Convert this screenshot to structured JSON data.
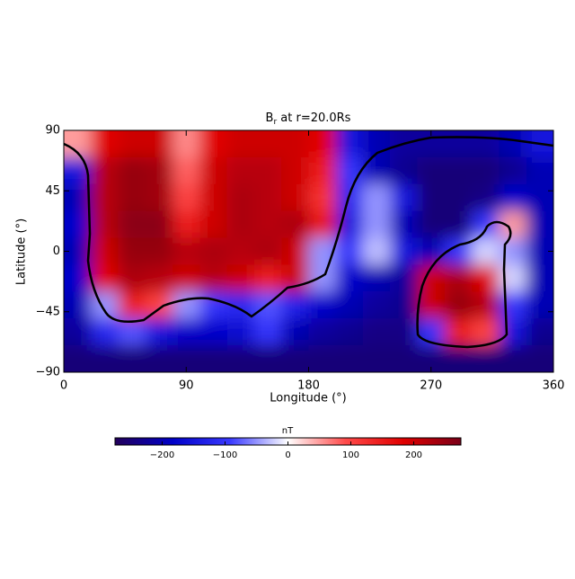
{
  "chart_data": {
    "type": "heatmap",
    "title_symbol": "B",
    "title_subscript": "r",
    "title_rest": " at r=20.0Rs",
    "xlabel": "Longitude (°)",
    "ylabel": "Latitude (°)",
    "xlim": [
      0,
      360
    ],
    "ylim": [
      -90,
      90
    ],
    "xticks": [
      0,
      90,
      180,
      270,
      360
    ],
    "yticks": [
      {
        "value": -90,
        "label": "−90"
      },
      {
        "value": -45,
        "label": "−45"
      },
      0,
      45,
      90
    ],
    "x": [
      10,
      30,
      50,
      70,
      90,
      110,
      130,
      150,
      170,
      190,
      210,
      230,
      250,
      270,
      290,
      310,
      330,
      350
    ],
    "y": [
      80,
      60,
      40,
      20,
      0,
      -20,
      -40,
      -60,
      -80
    ],
    "z": [
      [
        50,
        180,
        200,
        200,
        60,
        180,
        200,
        200,
        200,
        180,
        -150,
        -200,
        -220,
        -220,
        -220,
        -220,
        -200,
        -150
      ],
      [
        -150,
        220,
        250,
        240,
        80,
        200,
        220,
        220,
        200,
        150,
        -100,
        -200,
        -230,
        -250,
        -250,
        -250,
        -230,
        -200
      ],
      [
        -200,
        220,
        250,
        240,
        100,
        200,
        230,
        220,
        200,
        120,
        -120,
        -50,
        -150,
        -250,
        -250,
        -240,
        -180,
        -200
      ],
      [
        -180,
        220,
        260,
        260,
        150,
        200,
        230,
        220,
        230,
        160,
        -150,
        -50,
        -200,
        -250,
        -250,
        -100,
        50,
        -200
      ],
      [
        -200,
        200,
        250,
        250,
        220,
        230,
        220,
        230,
        200,
        -50,
        -100,
        -30,
        -150,
        -200,
        -100,
        -20,
        -50,
        -200
      ],
      [
        -180,
        180,
        230,
        220,
        200,
        220,
        200,
        150,
        200,
        -50,
        -180,
        -200,
        -220,
        200,
        230,
        180,
        -20,
        -200
      ],
      [
        -200,
        -50,
        150,
        100,
        -50,
        -100,
        -120,
        -80,
        -130,
        -180,
        -200,
        -220,
        -230,
        200,
        250,
        220,
        -100,
        -200
      ],
      [
        -220,
        -120,
        -80,
        -150,
        -180,
        -180,
        -170,
        -100,
        -200,
        -220,
        -230,
        -240,
        -240,
        -100,
        150,
        100,
        -150,
        -230
      ],
      [
        -250,
        -250,
        -250,
        -250,
        -250,
        -250,
        -250,
        -250,
        -250,
        -250,
        -250,
        -250,
        -250,
        -250,
        -250,
        -250,
        -250,
        -250
      ]
    ],
    "colorbar_label": "nT",
    "colorlim": [
      -275,
      275
    ],
    "colorbar_ticks": [
      {
        "value": -200,
        "label": "−200"
      },
      {
        "value": -100,
        "label": "−100"
      },
      0,
      100,
      200
    ],
    "colormap": [
      "#22005a",
      "#0000c8",
      "#3a3aff",
      "#ffffff",
      "#ff4a4a",
      "#e00000",
      "#7a0018"
    ]
  }
}
